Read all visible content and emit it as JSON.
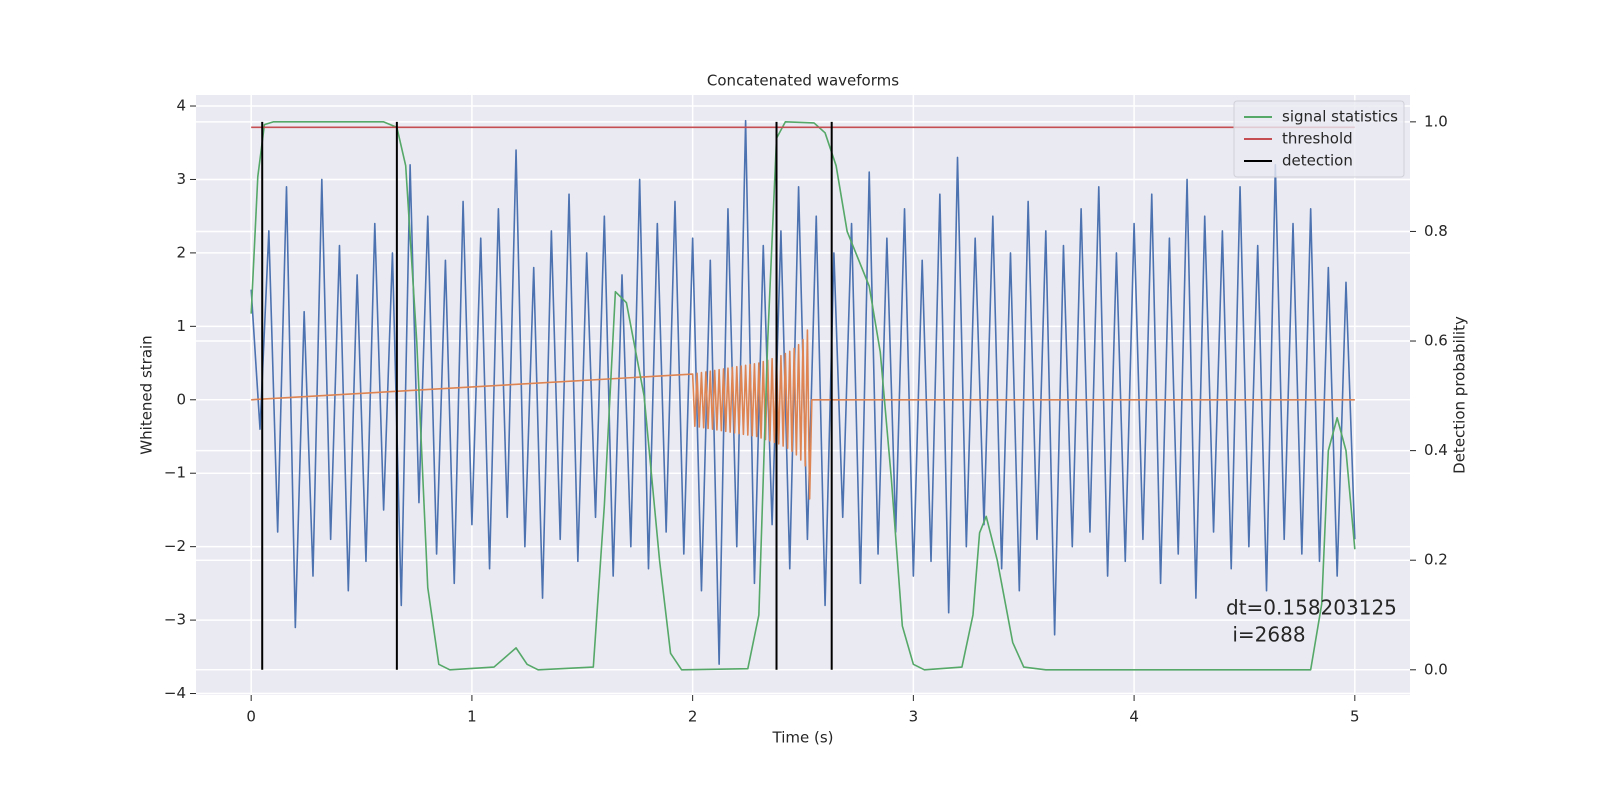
{
  "chart_data": {
    "type": "line",
    "title": "Concatenated waveforms",
    "xlabel": "Time (s)",
    "ylabel": "Whitened strain",
    "y2label": "Detection probability",
    "annotations": [
      "dt=0.158203125",
      " i=2688"
    ],
    "xlim": [
      -0.25,
      5.25
    ],
    "ylim": [
      -4.02,
      4.15
    ],
    "y2lim": [
      -0.046,
      1.049
    ],
    "xticks": [
      0,
      1,
      2,
      3,
      4,
      5
    ],
    "yticks": [
      {
        "value": -4,
        "label": "−4"
      },
      {
        "value": -3,
        "label": "−3"
      },
      {
        "value": -2,
        "label": "−2"
      },
      {
        "value": -1,
        "label": "−1"
      },
      0,
      1,
      2,
      3,
      4
    ],
    "y2ticks": [
      {
        "value": 0,
        "label": "0.0"
      },
      {
        "value": 0.2,
        "label": "0.2"
      },
      {
        "value": 0.4,
        "label": "0.4"
      },
      {
        "value": 0.6,
        "label": "0.6"
      },
      {
        "value": 0.8,
        "label": "0.8"
      },
      {
        "value": 1,
        "label": "1.0"
      }
    ],
    "grid": true,
    "legend": "upper right",
    "series": [
      {
        "color": "#4c72b0",
        "x": [
          0,
          0.04,
          0.08,
          0.12,
          0.16,
          0.2,
          0.24,
          0.28,
          0.32,
          0.36,
          0.4,
          0.44,
          0.48,
          0.52,
          0.56,
          0.6,
          0.64,
          0.68,
          0.72,
          0.76,
          0.8,
          0.84,
          0.88,
          0.92,
          0.96,
          1.0,
          1.04,
          1.08,
          1.12,
          1.16,
          1.2,
          1.24,
          1.28,
          1.32,
          1.36,
          1.4,
          1.44,
          1.48,
          1.52,
          1.56,
          1.6,
          1.64,
          1.68,
          1.72,
          1.76,
          1.8,
          1.84,
          1.88,
          1.92,
          1.96,
          2.0,
          2.04,
          2.08,
          2.12,
          2.16,
          2.2,
          2.24,
          2.28,
          2.32,
          2.36,
          2.4,
          2.44,
          2.48,
          2.52,
          2.56,
          2.6,
          2.64,
          2.68,
          2.72,
          2.76,
          2.8,
          2.84,
          2.88,
          2.92,
          2.96,
          3.0,
          3.04,
          3.08,
          3.12,
          3.16,
          3.2,
          3.24,
          3.28,
          3.32,
          3.36,
          3.4,
          3.44,
          3.48,
          3.52,
          3.56,
          3.6,
          3.64,
          3.68,
          3.72,
          3.76,
          3.8,
          3.84,
          3.88,
          3.92,
          3.96,
          4.0,
          4.04,
          4.08,
          4.12,
          4.16,
          4.2,
          4.24,
          4.28,
          4.32,
          4.36,
          4.4,
          4.44,
          4.48,
          4.52,
          4.56,
          4.6,
          4.64,
          4.68,
          4.72,
          4.76,
          4.8,
          4.84,
          4.88,
          4.92,
          4.96,
          5.0
        ],
        "values": [
          1.5,
          -0.4,
          2.3,
          -1.8,
          2.9,
          -3.1,
          1.2,
          -2.4,
          3.0,
          -1.9,
          2.1,
          -2.6,
          1.7,
          -2.2,
          2.4,
          -1.5,
          2.0,
          -2.8,
          3.2,
          -1.4,
          2.5,
          -2.1,
          1.9,
          -2.5,
          2.7,
          -1.7,
          2.2,
          -2.3,
          2.6,
          -1.6,
          3.4,
          -2.0,
          1.8,
          -2.7,
          2.3,
          -1.9,
          2.8,
          -2.2,
          2.0,
          -1.6,
          2.5,
          -2.4,
          1.7,
          -2.0,
          3.0,
          -2.3,
          2.4,
          -1.8,
          2.7,
          -2.1,
          2.2,
          -2.6,
          1.9,
          -3.6,
          2.6,
          -2.0,
          3.8,
          -2.5,
          2.1,
          -1.7,
          2.3,
          -2.3,
          2.9,
          -1.9,
          2.5,
          -2.8,
          2.0,
          -1.6,
          2.4,
          -2.5,
          3.1,
          -2.1,
          2.2,
          -1.8,
          2.6,
          -2.4,
          1.9,
          -2.2,
          2.8,
          -2.9,
          3.3,
          -2.0,
          2.2,
          -1.7,
          2.5,
          -2.3,
          2.0,
          -2.6,
          2.7,
          -1.9,
          2.3,
          -3.2,
          2.1,
          -2.0,
          2.6,
          -1.8,
          2.9,
          -2.4,
          2.0,
          -2.2,
          2.4,
          -1.9,
          2.8,
          -2.5,
          2.2,
          -2.1,
          3.0,
          -2.7,
          2.5,
          -1.8,
          2.3,
          -2.3,
          2.9,
          -2.0,
          2.1,
          -2.6,
          3.2,
          -1.9,
          2.4,
          -2.1,
          2.6,
          -2.2,
          1.8,
          -2.4,
          1.6,
          -1.9
        ]
      },
      {
        "color": "#dd8452",
        "x": [
          0,
          2.0,
          2.01,
          2.02,
          2.03,
          2.04,
          2.05,
          2.06,
          2.07,
          2.08,
          2.09,
          2.1,
          2.11,
          2.12,
          2.13,
          2.14,
          2.15,
          2.16,
          2.17,
          2.18,
          2.19,
          2.2,
          2.21,
          2.22,
          2.23,
          2.24,
          2.25,
          2.26,
          2.27,
          2.28,
          2.29,
          2.3,
          2.31,
          2.32,
          2.33,
          2.34,
          2.35,
          2.36,
          2.37,
          2.38,
          2.39,
          2.4,
          2.41,
          2.42,
          2.43,
          2.44,
          2.45,
          2.46,
          2.47,
          2.48,
          2.49,
          2.5,
          2.51,
          2.52,
          2.53,
          2.54,
          2.56,
          5
        ],
        "values": [
          0,
          0.35,
          -0.36,
          0.36,
          -0.37,
          0.37,
          -0.38,
          0.38,
          -0.39,
          0.39,
          -0.4,
          0.4,
          -0.41,
          0.41,
          -0.42,
          0.42,
          -0.43,
          0.43,
          -0.44,
          0.44,
          -0.45,
          0.45,
          -0.46,
          0.46,
          -0.47,
          0.47,
          -0.48,
          0.48,
          -0.49,
          0.49,
          -0.5,
          0.5,
          -0.52,
          0.52,
          -0.54,
          0.54,
          -0.56,
          0.56,
          -0.58,
          0.58,
          -0.6,
          0.6,
          -0.63,
          0.63,
          -0.66,
          0.66,
          -0.7,
          0.7,
          -0.75,
          0.75,
          -0.82,
          0.82,
          -0.9,
          0.95,
          -1.35,
          0.0,
          0,
          0
        ]
      },
      {
        "name": "signal statistics",
        "color": "#55a868",
        "axis": "y2",
        "x": [
          0,
          0.03,
          0.06,
          0.1,
          0.6,
          0.66,
          0.7,
          0.75,
          0.8,
          0.85,
          0.9,
          1.1,
          1.2,
          1.25,
          1.3,
          1.55,
          1.6,
          1.65,
          1.7,
          1.78,
          1.85,
          1.9,
          1.95,
          2.25,
          2.3,
          2.34,
          2.38,
          2.42,
          2.55,
          2.6,
          2.65,
          2.7,
          2.75,
          2.8,
          2.85,
          2.9,
          2.95,
          3.0,
          3.05,
          3.22,
          3.27,
          3.3,
          3.33,
          3.38,
          3.45,
          3.5,
          3.6,
          4.8,
          4.85,
          4.88,
          4.92,
          4.96,
          5.0
        ],
        "values": [
          0.65,
          0.9,
          0.995,
          1.0,
          1.0,
          0.99,
          0.92,
          0.6,
          0.15,
          0.01,
          0.0,
          0.005,
          0.04,
          0.01,
          0,
          0.005,
          0.3,
          0.69,
          0.67,
          0.5,
          0.2,
          0.03,
          0.0,
          0.002,
          0.1,
          0.6,
          0.97,
          1.0,
          0.998,
          0.98,
          0.92,
          0.8,
          0.75,
          0.7,
          0.58,
          0.35,
          0.08,
          0.01,
          0.0,
          0.005,
          0.1,
          0.25,
          0.28,
          0.2,
          0.05,
          0.005,
          0.0,
          0.0,
          0.12,
          0.4,
          0.46,
          0.4,
          0.22
        ]
      },
      {
        "name": "threshold",
        "color": "#c44e52",
        "axis": "y2",
        "x": [
          0,
          5
        ],
        "values": [
          0.99,
          0.99
        ]
      },
      {
        "name": "detection",
        "color": "#000000",
        "axis": "y2",
        "kind": "vline",
        "x": [
          0.05,
          0.66,
          2.38,
          2.63
        ],
        "values": [
          1,
          1,
          1,
          1
        ]
      }
    ]
  }
}
